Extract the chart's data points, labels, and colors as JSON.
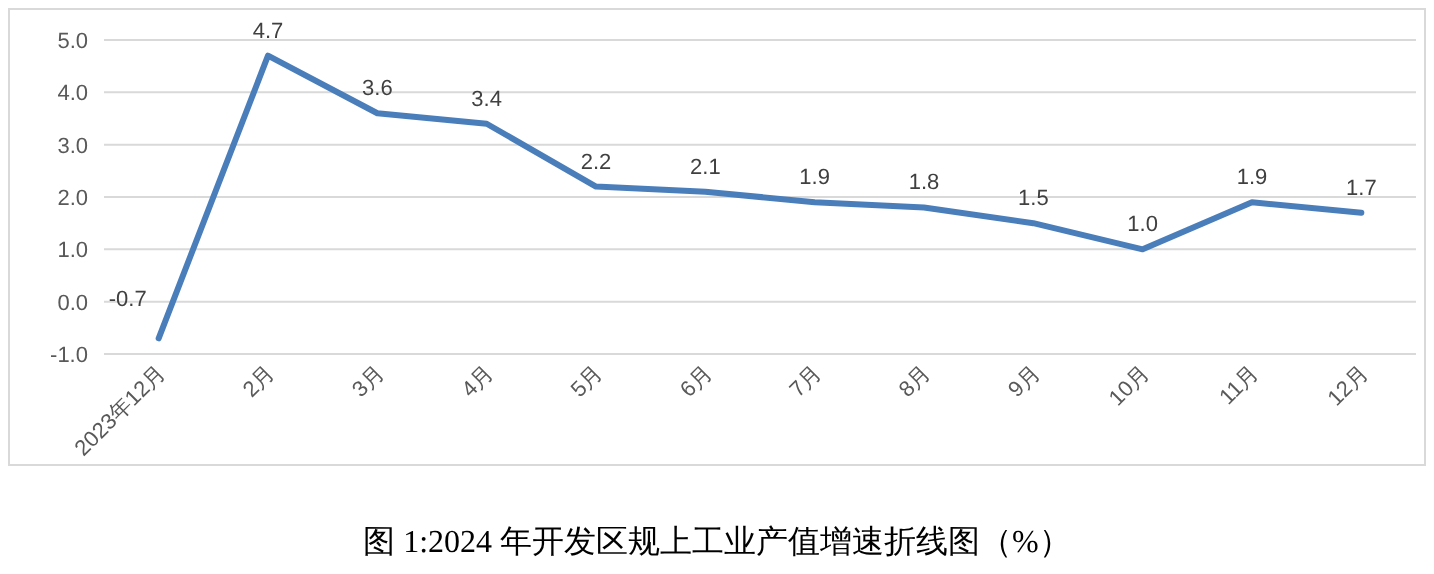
{
  "chart_data": {
    "type": "line",
    "title": "图 1:2024 年开发区规上工业产值增速折线图（%）",
    "categories": [
      "2023年12月",
      "2月",
      "3月",
      "4月",
      "5月",
      "6月",
      "7月",
      "8月",
      "9月",
      "10月",
      "11月",
      "12月"
    ],
    "series": [
      {
        "color": "#4a7ebb",
        "values": [
          -0.7,
          4.7,
          3.6,
          3.4,
          2.2,
          2.1,
          1.9,
          1.8,
          1.5,
          1.0,
          1.9,
          1.7
        ],
        "value_labels": [
          "-0.7",
          "4.7",
          "3.6",
          "3.4",
          "2.2",
          "2.1",
          "1.9",
          "1.8",
          "1.5",
          "1.0",
          "1.9",
          "1.7"
        ]
      }
    ],
    "ylim": [
      -1,
      5
    ],
    "yticks": [
      {
        "value": -1,
        "label": "-1.0"
      },
      {
        "value": 0,
        "label": "0.0"
      },
      {
        "value": 1,
        "label": "1.0"
      },
      {
        "value": 2,
        "label": "2.0"
      },
      {
        "value": 3,
        "label": "3.0"
      },
      {
        "value": 4,
        "label": "4.0"
      },
      {
        "value": 5,
        "label": "5.0"
      }
    ],
    "grid": "y",
    "marker": "none",
    "line_style": "solid"
  }
}
